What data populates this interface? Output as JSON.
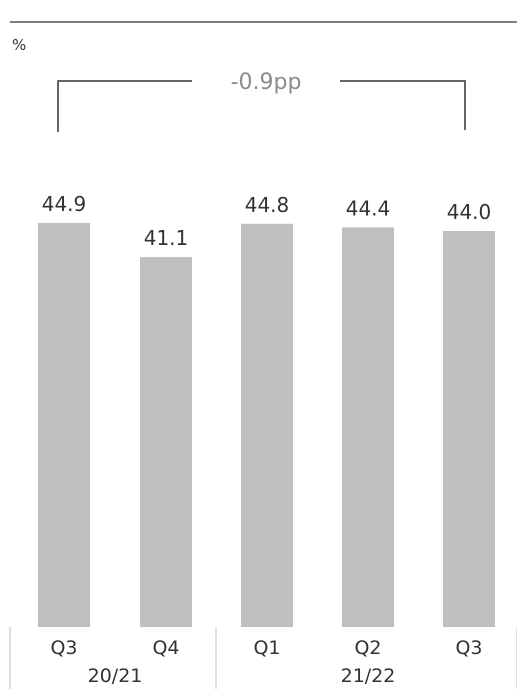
{
  "chart_data": {
    "type": "bar",
    "unit": "%",
    "categories": [
      "Q3",
      "Q4",
      "Q1",
      "Q2",
      "Q3"
    ],
    "groups": [
      {
        "label": "20/21",
        "count": 2
      },
      {
        "label": "21/22",
        "count": 3
      }
    ],
    "values": [
      44.9,
      41.1,
      44.8,
      44.4,
      44.0
    ],
    "value_labels": [
      "44.9",
      "41.1",
      "44.8",
      "44.4",
      "44.0"
    ],
    "annotation": "-0.9pp",
    "ylim": [
      0,
      46
    ],
    "colors": {
      "bar": "#bfbfbf",
      "text": "#333333",
      "annotation": "#8c8c8c",
      "line": "#333333",
      "divider": "#bfbfbf"
    }
  }
}
